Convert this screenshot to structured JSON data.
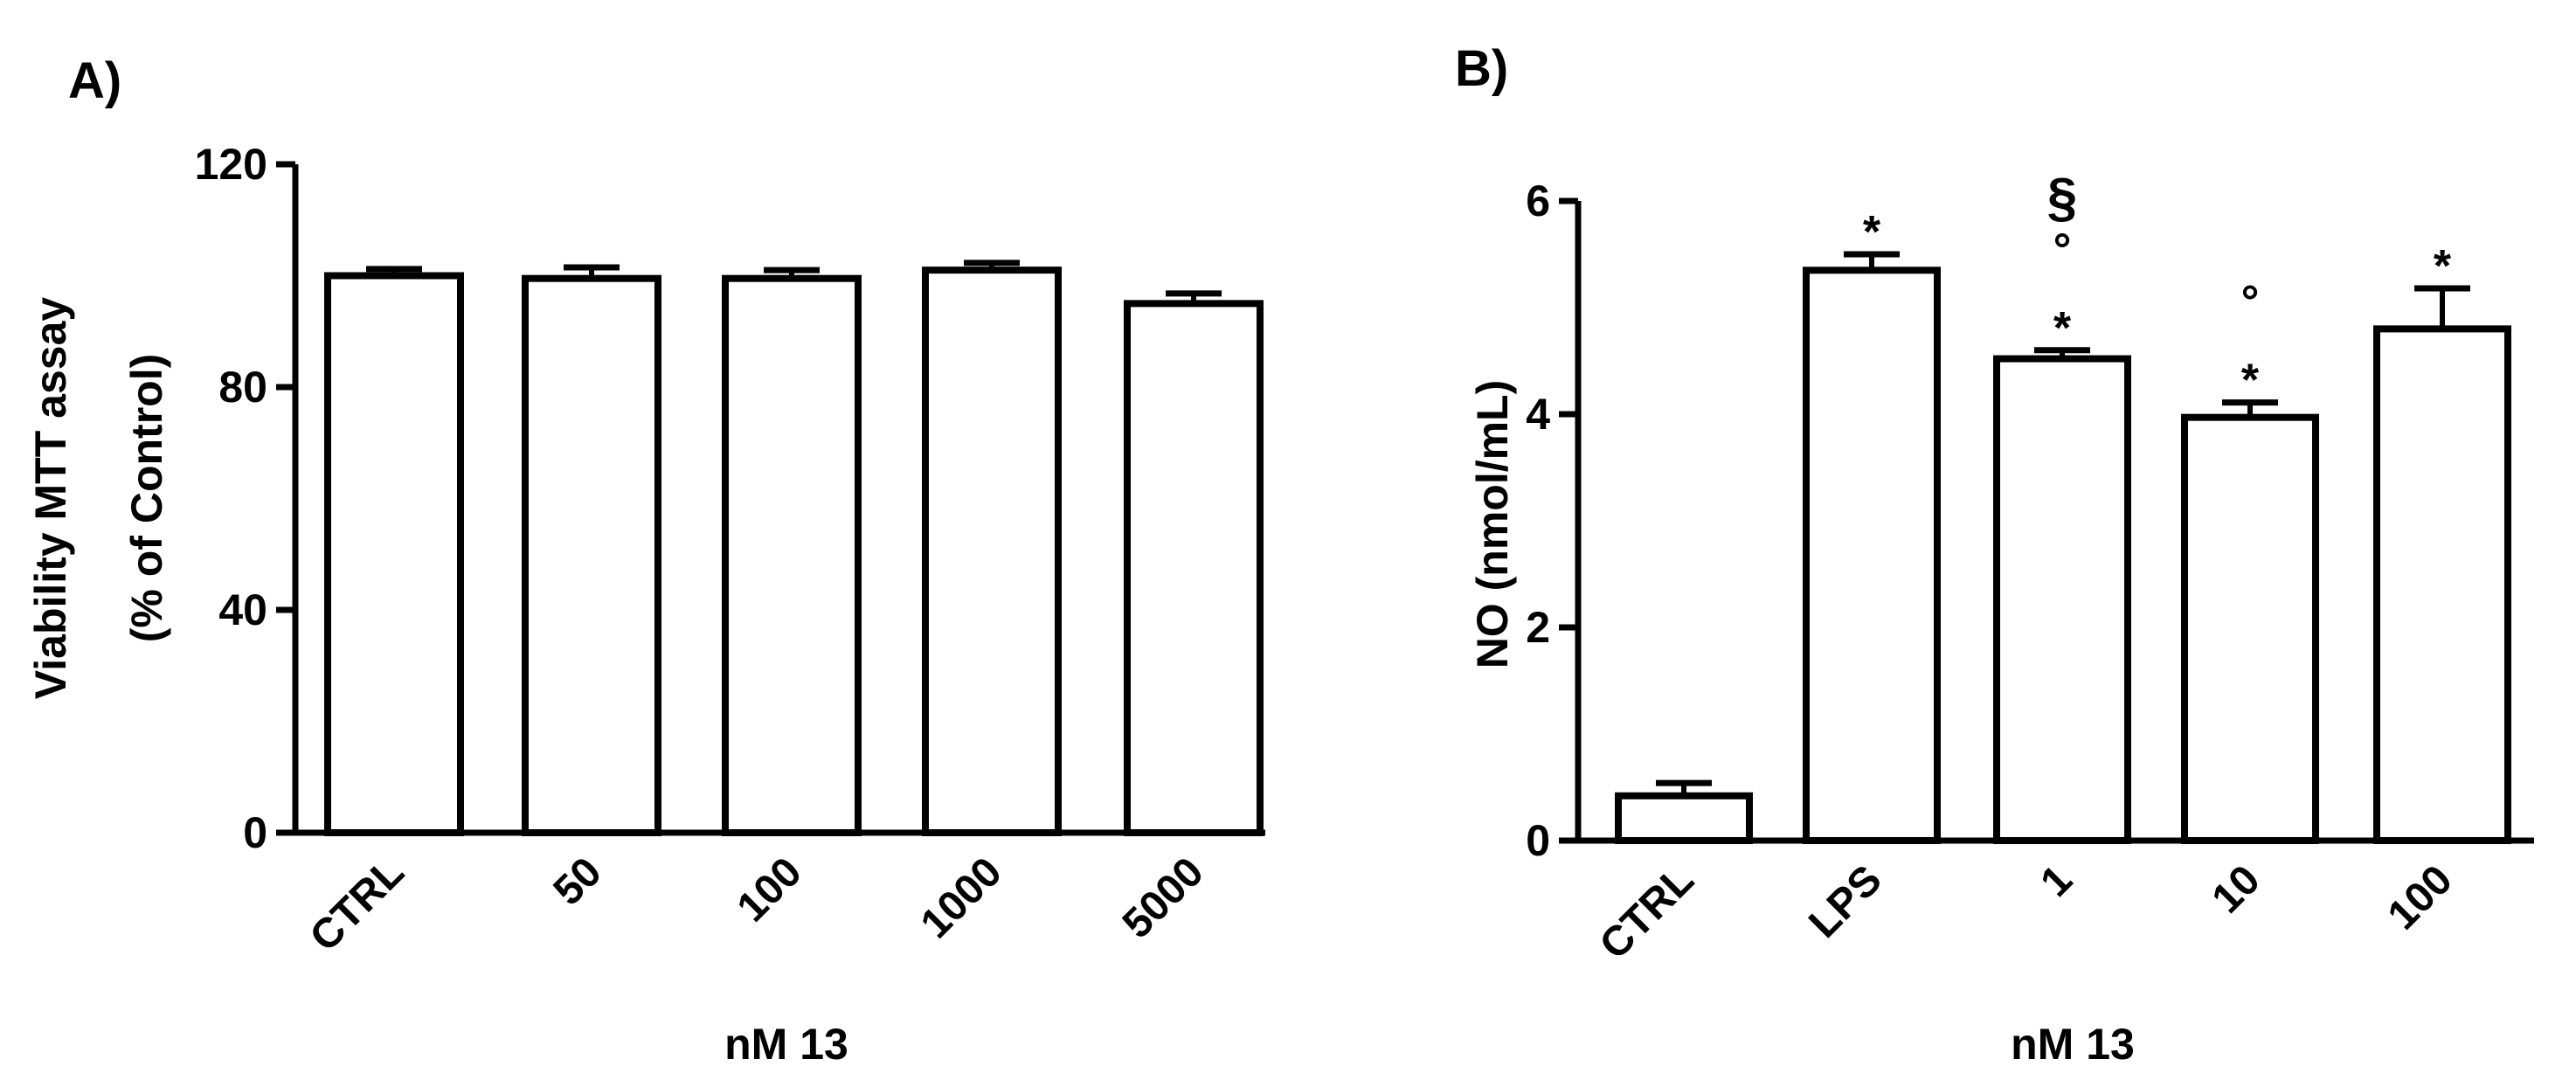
{
  "chart_data": [
    {
      "type": "bar",
      "panel_label": "A)",
      "categories": [
        "CTRL",
        "50",
        "100",
        "1000",
        "5000"
      ],
      "values": [
        100,
        99.5,
        99.5,
        101,
        95
      ],
      "errors": [
        1.2,
        2,
        1.5,
        1.3,
        1.8
      ],
      "annotations": [
        [],
        [],
        [],
        [],
        []
      ],
      "xlabel": "nM 13",
      "ylabel_lines": [
        "Viability MTT assay",
        "(% of Control)"
      ],
      "ylim": [
        0,
        120
      ],
      "yticks": [
        0,
        40,
        80,
        120
      ],
      "grid": false
    },
    {
      "type": "bar",
      "panel_label": "B)",
      "categories": [
        "CTRL",
        "LPS",
        "1",
        "10",
        "100"
      ],
      "values": [
        0.42,
        5.35,
        4.52,
        3.97,
        4.8
      ],
      "errors": [
        0.12,
        0.15,
        0.08,
        0.14,
        0.38
      ],
      "annotations": [
        [],
        [
          "*"
        ],
        [
          "*",
          "°",
          "§"
        ],
        [
          "*",
          "°"
        ],
        [
          "*"
        ]
      ],
      "xlabel": "nM 13",
      "ylabel_lines": [
        "NO (nmol/mL)"
      ],
      "ylim": [
        0,
        6
      ],
      "yticks": [
        0,
        2,
        4,
        6
      ],
      "grid": false
    }
  ]
}
